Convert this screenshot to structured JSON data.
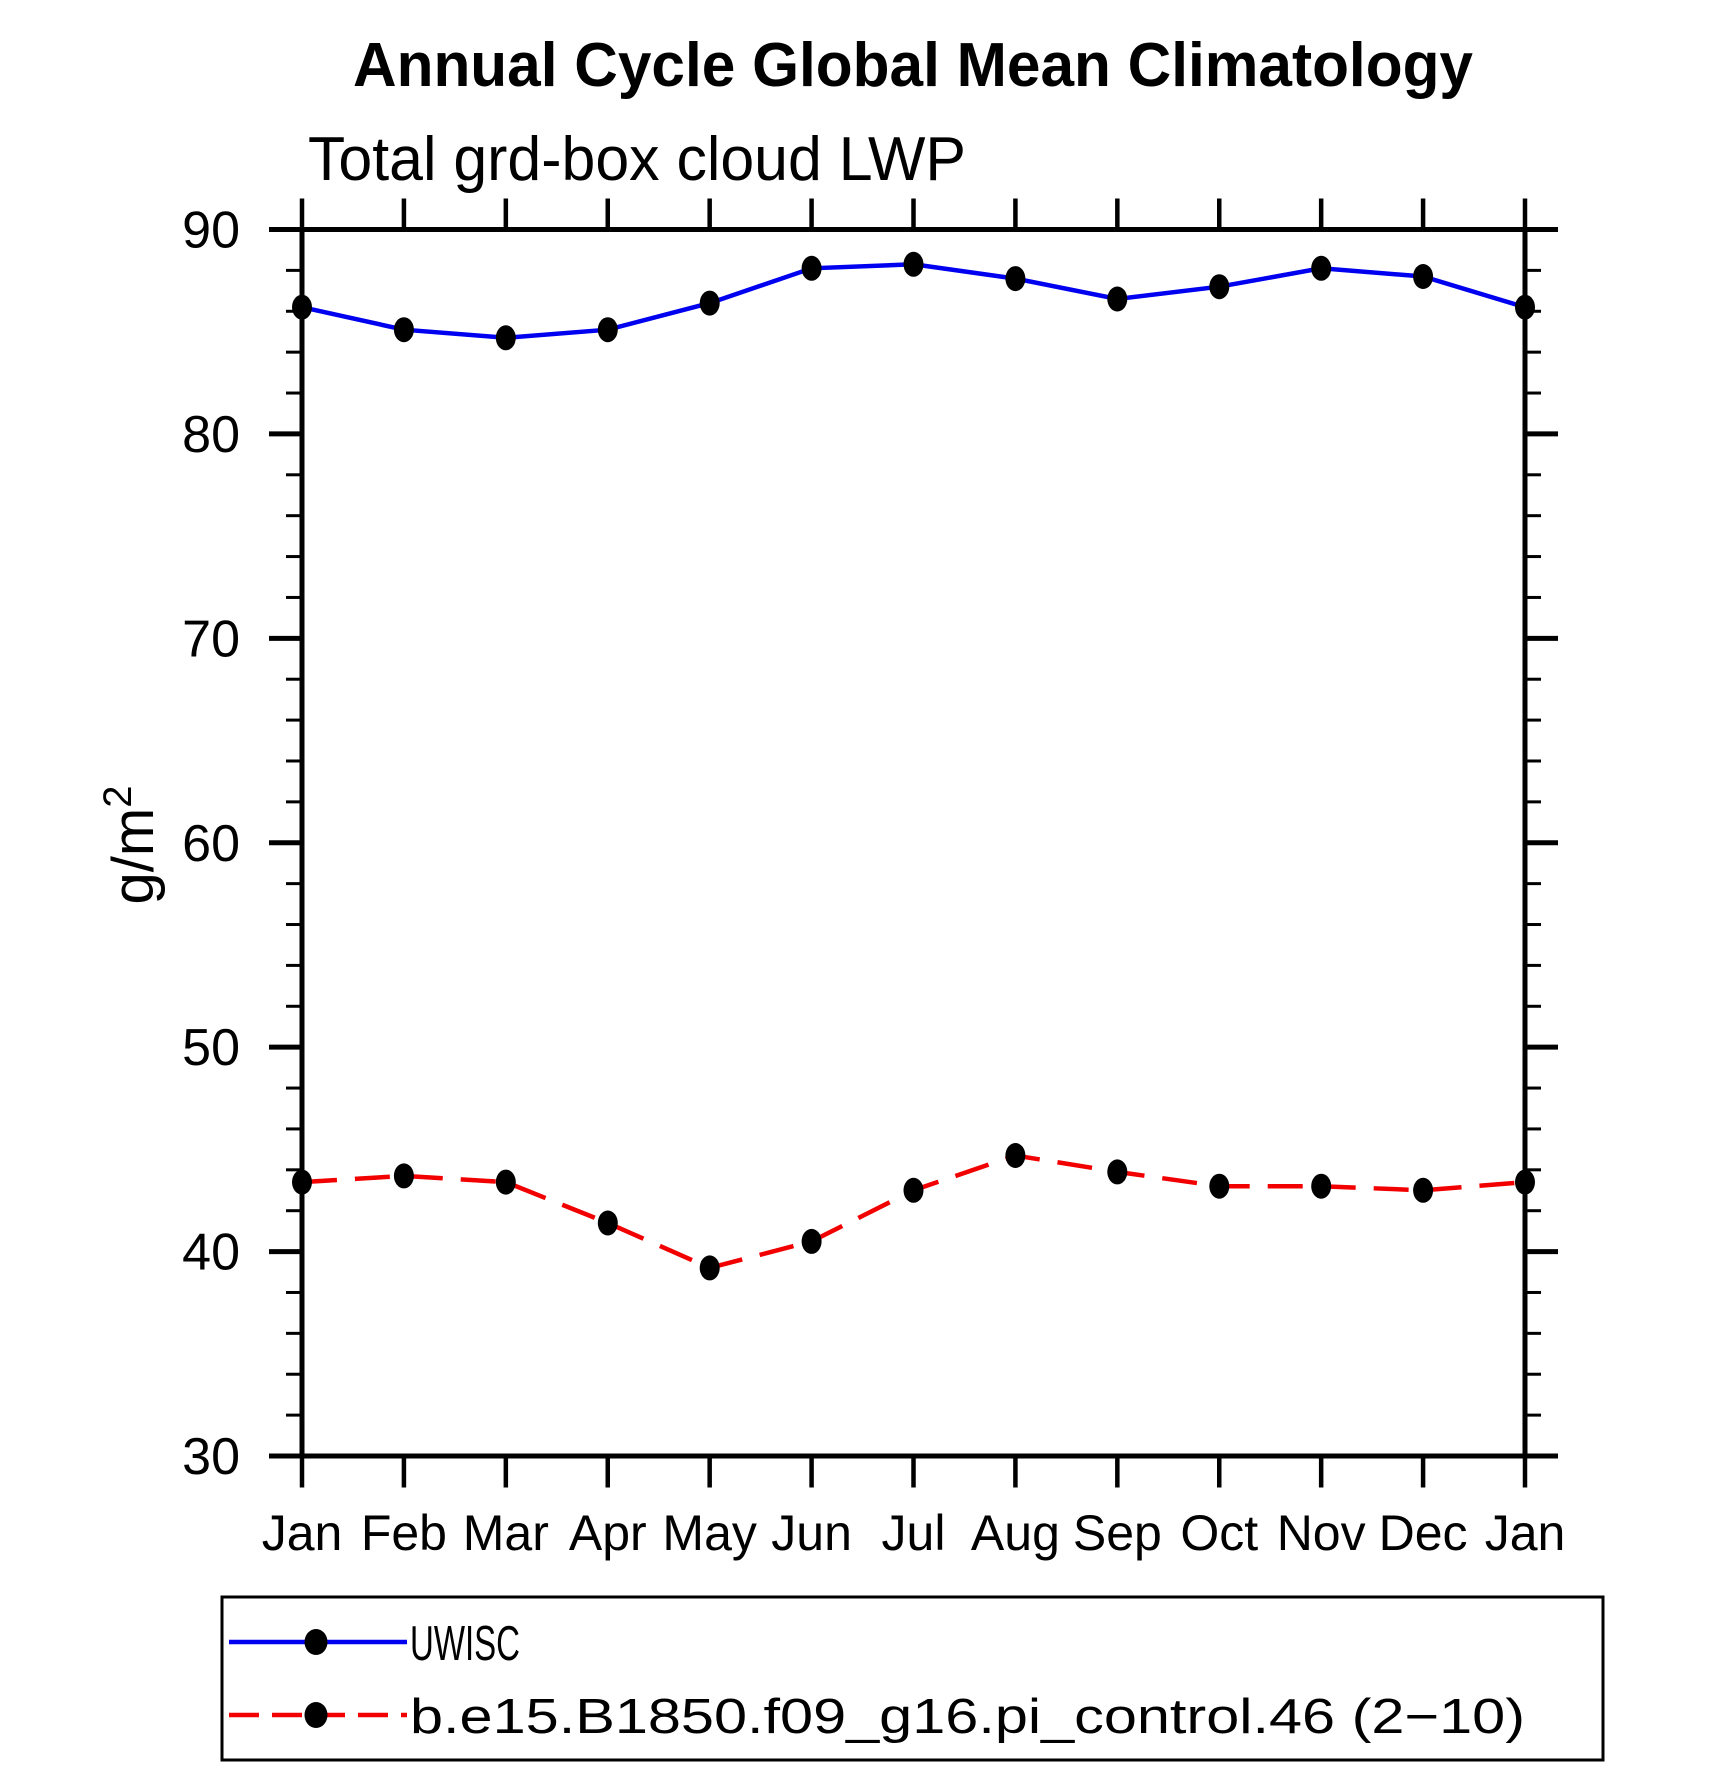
{
  "figure": {
    "ylabel_base": "g/m",
    "ylabel_sup": "2"
  },
  "chart_data": {
    "type": "line",
    "title": "Annual Cycle Global Mean Climatology",
    "subtitle": "Total grd-box cloud LWP",
    "ylabel": "g/m²",
    "x_categories": [
      "Jan",
      "Feb",
      "Mar",
      "Apr",
      "May",
      "Jun",
      "Jul",
      "Aug",
      "Sep",
      "Oct",
      "Nov",
      "Dec",
      "Jan"
    ],
    "ylim": [
      30,
      90
    ],
    "ytick_major": [
      30,
      40,
      50,
      60,
      70,
      80,
      90
    ],
    "ytick_minor_step": 2,
    "grid": false,
    "legend_position": "bottom-left-box",
    "axis_color": "#000000",
    "series": [
      {
        "name": "UWISC",
        "color": "#0000f0",
        "line_style": "solid",
        "marker": "filled-circle",
        "marker_color": "#000000",
        "values": [
          86.2,
          85.1,
          84.7,
          85.1,
          86.4,
          88.1,
          88.3,
          87.6,
          86.6,
          87.2,
          88.1,
          87.7,
          86.2
        ]
      },
      {
        "name": "b.e15.B1850.f09_g16.pi_control.46 (2−10)",
        "color": "#f20000",
        "line_style": "dashed",
        "marker": "filled-circle",
        "marker_color": "#000000",
        "values": [
          43.4,
          43.7,
          43.4,
          41.4,
          39.2,
          40.5,
          43.0,
          44.7,
          43.9,
          43.2,
          43.2,
          43.0,
          43.4
        ]
      }
    ]
  }
}
